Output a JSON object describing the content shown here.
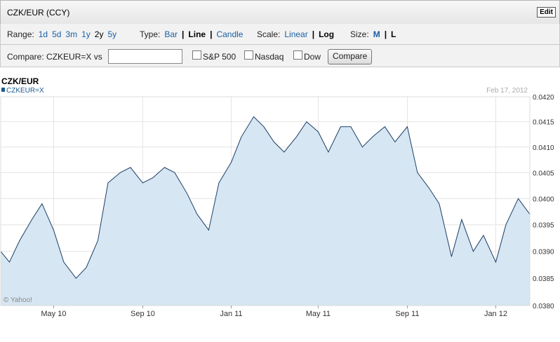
{
  "header": {
    "title": "CZK/EUR (CCY)",
    "edit_label": "Edit"
  },
  "controls": {
    "range_label": "Range:",
    "range_options": [
      "1d",
      "5d",
      "3m",
      "1y",
      "2y",
      "5y"
    ],
    "range_selected": "2y",
    "type_label": "Type:",
    "type_options": [
      "Bar",
      "Line",
      "Candle"
    ],
    "type_selected": "Line",
    "scale_label": "Scale:",
    "scale_options": [
      "Linear",
      "Log"
    ],
    "scale_selected": "Log",
    "size_label": "Size:",
    "size_options": [
      "M",
      "L"
    ],
    "separator": "|"
  },
  "compare": {
    "label": "Compare: CZKEUR=X vs",
    "input_value": "",
    "options": [
      "S&P 500",
      "Nasdaq",
      "Dow"
    ],
    "button_label": "Compare"
  },
  "colors": {
    "line": "#1c3f66",
    "fill": "#d6e6f2",
    "grid": "#e4e4e4",
    "legend": "#1c5a8e"
  },
  "chart_data": {
    "type": "area",
    "title": "CZK/EUR",
    "legend": [
      "CZKEUR=X"
    ],
    "date_label": "Feb 17, 2012",
    "watermark": "© Yahoo!",
    "grid": true,
    "y_axis_side": "right",
    "ylim": [
      0.038,
      0.042
    ],
    "y_ticks": [
      0.038,
      0.0385,
      0.039,
      0.0395,
      0.04,
      0.0405,
      0.041,
      0.0415,
      0.042
    ],
    "y_tick_labels": [
      "0.0380",
      "0.0385",
      "0.0390",
      "0.0395",
      "0.0400",
      "0.0405",
      "0.0410",
      "0.0415",
      "0.0420"
    ],
    "x_range": [
      "2010-02-17",
      "2012-02-17"
    ],
    "x_ticks": [
      "2010-05-01",
      "2010-09-01",
      "2011-01-01",
      "2011-05-01",
      "2011-09-01",
      "2012-01-01"
    ],
    "x_tick_labels": [
      "May 10",
      "Sep 10",
      "Jan 11",
      "May 11",
      "Sep 11",
      "Jan 12"
    ],
    "series": [
      {
        "name": "CZKEUR=X",
        "x": [
          "2010-02-17",
          "2010-03-01",
          "2010-03-15",
          "2010-04-01",
          "2010-04-15",
          "2010-05-01",
          "2010-05-15",
          "2010-06-01",
          "2010-06-15",
          "2010-07-01",
          "2010-07-15",
          "2010-08-01",
          "2010-08-15",
          "2010-09-01",
          "2010-09-15",
          "2010-10-01",
          "2010-10-15",
          "2010-11-01",
          "2010-11-15",
          "2010-12-01",
          "2010-12-15",
          "2011-01-01",
          "2011-01-15",
          "2011-02-01",
          "2011-02-15",
          "2011-03-01",
          "2011-03-15",
          "2011-04-01",
          "2011-04-15",
          "2011-05-01",
          "2011-05-15",
          "2011-06-01",
          "2011-06-15",
          "2011-07-01",
          "2011-07-15",
          "2011-08-01",
          "2011-08-15",
          "2011-09-01",
          "2011-09-15",
          "2011-10-01",
          "2011-10-15",
          "2011-11-01",
          "2011-11-15",
          "2011-12-01",
          "2011-12-15",
          "2012-01-01",
          "2012-01-15",
          "2012-02-01",
          "2012-02-17"
        ],
        "values": [
          0.039,
          0.0388,
          0.0392,
          0.0396,
          0.0399,
          0.0394,
          0.0388,
          0.0385,
          0.0387,
          0.0392,
          0.0403,
          0.0405,
          0.0406,
          0.0403,
          0.0404,
          0.0406,
          0.0405,
          0.0401,
          0.0397,
          0.0394,
          0.0403,
          0.0407,
          0.0412,
          0.0416,
          0.0414,
          0.0411,
          0.0409,
          0.0412,
          0.0415,
          0.0413,
          0.0409,
          0.0414,
          0.0414,
          0.041,
          0.0412,
          0.0414,
          0.0411,
          0.0414,
          0.0405,
          0.0402,
          0.0399,
          0.0389,
          0.0396,
          0.039,
          0.0393,
          0.0388,
          0.0395,
          0.04,
          0.0397
        ]
      }
    ]
  }
}
